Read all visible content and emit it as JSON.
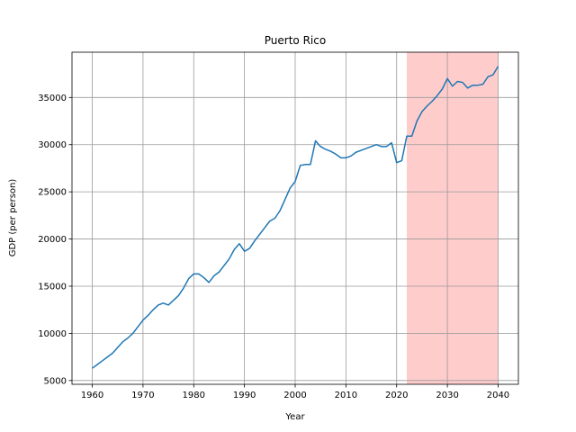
{
  "chart_data": {
    "type": "line",
    "title": "Puerto Rico",
    "xlabel": "Year",
    "ylabel": "GDP (per person)",
    "xlim": [
      1956,
      2044
    ],
    "ylim": [
      4600,
      39800
    ],
    "x_ticks": [
      1960,
      1970,
      1980,
      1990,
      2000,
      2010,
      2020,
      2030,
      2040
    ],
    "y_ticks": [
      5000,
      10000,
      15000,
      20000,
      25000,
      30000,
      35000
    ],
    "grid": true,
    "shaded_region": {
      "x_start": 2022,
      "x_end": 2040,
      "color": "#ffcccc"
    },
    "line_color": "#1f77b4",
    "series": [
      {
        "x": [
          1960,
          1961,
          1962,
          1963,
          1964,
          1965,
          1966,
          1967,
          1968,
          1969,
          1970,
          1971,
          1972,
          1973,
          1974,
          1975,
          1976,
          1977,
          1978,
          1979,
          1980,
          1981,
          1982,
          1983,
          1984,
          1985,
          1986,
          1987,
          1988,
          1989,
          1990,
          1991,
          1992,
          1993,
          1994,
          1995,
          1996,
          1997,
          1998,
          1999,
          2000,
          2001,
          2002,
          2003,
          2004,
          2005,
          2006,
          2007,
          2008,
          2009,
          2010,
          2011,
          2012,
          2013,
          2014,
          2015,
          2016,
          2017,
          2018,
          2019,
          2020,
          2021,
          2022,
          2023,
          2024,
          2025,
          2026,
          2027,
          2028,
          2029,
          2030,
          2031,
          2032,
          2033,
          2034,
          2035,
          2036,
          2037,
          2038,
          2039,
          2040
        ],
        "y": [
          6300,
          6700,
          7100,
          7500,
          7900,
          8500,
          9100,
          9500,
          10000,
          10700,
          11400,
          11900,
          12500,
          13000,
          13200,
          13000,
          13500,
          14000,
          14800,
          15800,
          16300,
          16300,
          15900,
          15400,
          16100,
          16500,
          17200,
          17900,
          18900,
          19500,
          18700,
          19000,
          19800,
          20500,
          21200,
          21900,
          22200,
          23000,
          24200,
          25400,
          26100,
          27800,
          27900,
          27900,
          30400,
          29800,
          29500,
          29300,
          29000,
          28600,
          28600,
          28800,
          29200,
          29400,
          29600,
          29800,
          30000,
          29800,
          29800,
          30200,
          28100,
          28300,
          30900,
          30900,
          32500,
          33500,
          34100,
          34600,
          35200,
          35900,
          37000,
          36200,
          36700,
          36600,
          36000,
          36300,
          36300,
          36400,
          37200,
          37400,
          38300
        ]
      }
    ]
  }
}
